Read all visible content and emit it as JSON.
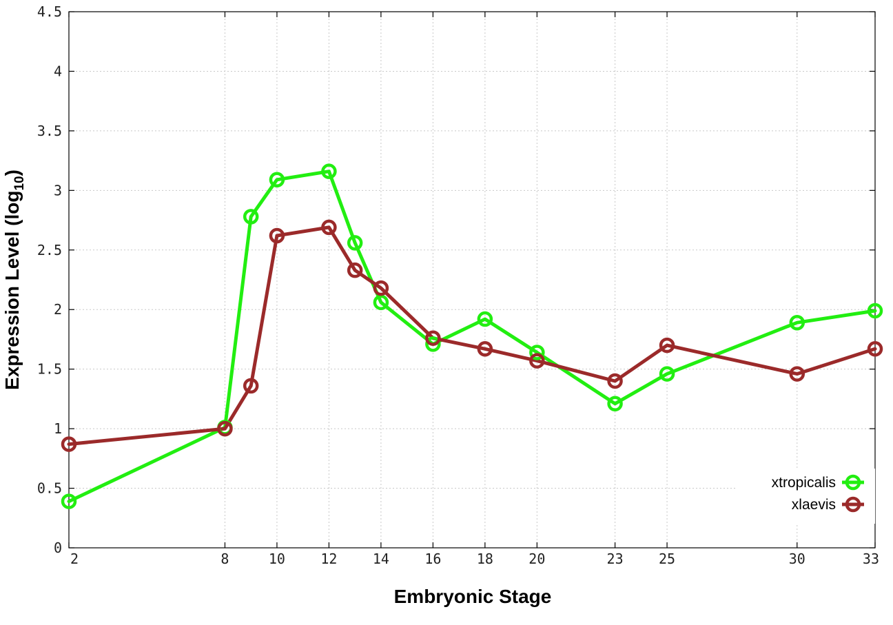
{
  "chart_data": {
    "type": "line",
    "xlabel": "Embryonic Stage",
    "ylabel_main": "Expression Level (log",
    "ylabel_sub": "10",
    "ylabel_close": ")",
    "xlim": [
      2,
      33
    ],
    "ylim": [
      0,
      4.5
    ],
    "x_ticks": [
      2,
      8,
      10,
      12,
      14,
      16,
      18,
      20,
      23,
      25,
      30,
      33
    ],
    "x_tick_labels": [
      "2",
      "8",
      "10",
      "12",
      "14",
      "16",
      "18",
      "20",
      "23",
      "25",
      "30",
      "33"
    ],
    "y_ticks": [
      0,
      0.5,
      1,
      1.5,
      2,
      2.5,
      3,
      3.5,
      4,
      4.5
    ],
    "y_tick_labels": [
      "0",
      "0.5",
      "1",
      "1.5",
      "2",
      "2.5",
      "3",
      "3.5",
      "4",
      "4.5"
    ],
    "grid": true,
    "legend_position": "bottom-right",
    "series": [
      {
        "name": "xtropicalis",
        "color": "#22ee11",
        "x": [
          2,
          8,
          9,
          10,
          12,
          13,
          14,
          16,
          18,
          20,
          23,
          25,
          30,
          33
        ],
        "y": [
          0.39,
          1.01,
          2.78,
          3.09,
          3.16,
          2.56,
          2.06,
          1.71,
          1.92,
          1.64,
          1.21,
          1.46,
          1.89,
          1.99
        ]
      },
      {
        "name": "xlaevis",
        "color": "#9b2a2a",
        "x": [
          2,
          8,
          9,
          10,
          12,
          13,
          14,
          16,
          18,
          20,
          23,
          25,
          30,
          33
        ],
        "y": [
          0.87,
          1.0,
          1.36,
          2.62,
          2.69,
          2.33,
          2.18,
          1.76,
          1.67,
          1.57,
          1.4,
          1.7,
          1.46,
          1.67
        ]
      }
    ]
  }
}
